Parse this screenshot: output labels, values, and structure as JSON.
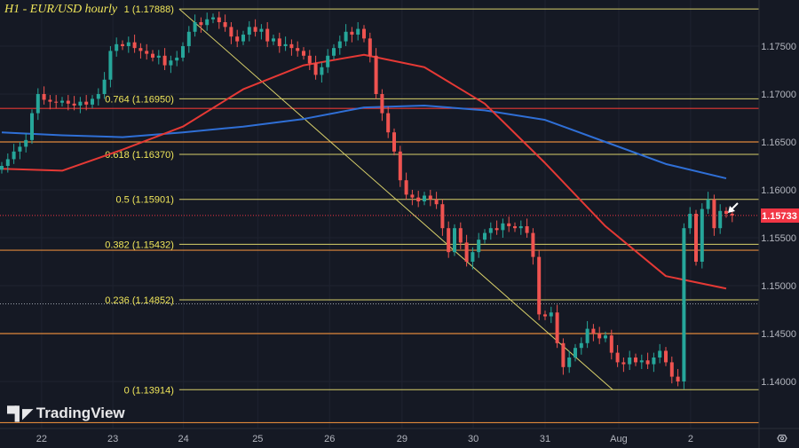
{
  "header": {
    "title": "H1 - EUR/USD hourly"
  },
  "branding": {
    "logo_text": "TradingView"
  },
  "colors": {
    "background": "#151924",
    "up": "#26a69a",
    "down": "#ef5350",
    "fib": "#d8d06a",
    "ma_fast": "#e53935",
    "ma_slow": "#2f6fd6",
    "level": "#e0893a",
    "price_badge": "#f23645"
  },
  "chart_data": {
    "type": "candlestick",
    "title": "H1 - EUR/USD hourly",
    "ylim": [
      1.135,
      1.181
    ],
    "grid": true,
    "y_ticks": [
      "1.17500",
      "1.17000",
      "1.16500",
      "1.16000",
      "1.15500",
      "1.15000",
      "1.14500",
      "1.14000"
    ],
    "y_tick_values": [
      1.175,
      1.17,
      1.165,
      1.16,
      1.155,
      1.15,
      1.145,
      1.14
    ],
    "x_ticks": [
      {
        "label": "22",
        "index": 6.6
      },
      {
        "label": "23",
        "index": 18.4
      },
      {
        "label": "24",
        "index": 30.1
      },
      {
        "label": "25",
        "index": 42.4
      },
      {
        "label": "26",
        "index": 54.3
      },
      {
        "label": "29",
        "index": 66.3
      },
      {
        "label": "30",
        "index": 78.1
      },
      {
        "label": "31",
        "index": 90.0
      },
      {
        "label": "Aug",
        "index": 102.2
      },
      {
        "label": "2",
        "index": 114.1
      }
    ],
    "candle_interval": "2h",
    "closes": [
      1.1625,
      1.1632,
      1.164,
      1.1645,
      1.1652,
      1.168,
      1.17,
      1.1694,
      1.1692,
      1.1691,
      1.1693,
      1.169,
      1.1688,
      1.1692,
      1.1689,
      1.1695,
      1.17,
      1.1715,
      1.1745,
      1.1752,
      1.175,
      1.1754,
      1.1748,
      1.1745,
      1.1742,
      1.1738,
      1.174,
      1.173,
      1.1735,
      1.1738,
      1.175,
      1.1765,
      1.1775,
      1.1772,
      1.1778,
      1.178,
      1.1775,
      1.177,
      1.176,
      1.1755,
      1.1762,
      1.177,
      1.1765,
      1.1768,
      1.1755,
      1.1758,
      1.175,
      1.1752,
      1.1748,
      1.1745,
      1.174,
      1.1732,
      1.172,
      1.1728,
      1.174,
      1.1748,
      1.1755,
      1.1765,
      1.1762,
      1.1768,
      1.1758,
      1.174,
      1.17,
      1.168,
      1.166,
      1.164,
      1.161,
      1.1595,
      1.1592,
      1.1588,
      1.1594,
      1.159,
      1.1585,
      1.156,
      1.1535,
      1.156,
      1.1545,
      1.1525,
      1.1535,
      1.1548,
      1.1555,
      1.156,
      1.1558,
      1.1565,
      1.1562,
      1.156,
      1.1562,
      1.1555,
      1.153,
      1.147,
      1.1468,
      1.1472,
      1.144,
      1.1415,
      1.1425,
      1.1435,
      1.144,
      1.1455,
      1.145,
      1.1445,
      1.1448,
      1.143,
      1.142,
      1.1418,
      1.1425,
      1.142,
      1.1422,
      1.1418,
      1.1425,
      1.1432,
      1.142,
      1.1405,
      1.14,
      1.156,
      1.1575,
      1.1525,
      1.158,
      1.159,
      1.156,
      1.1578,
      1.1575,
      1.15733
    ],
    "moving_averages": {
      "sample_every": 10,
      "red": [
        1.1622,
        1.162,
        1.1642,
        1.1666,
        1.1705,
        1.173,
        1.1741,
        1.1728,
        1.169,
        1.1628,
        1.1562,
        1.151,
        1.1497
      ],
      "blue": [
        1.166,
        1.1657,
        1.1655,
        1.166,
        1.1666,
        1.1674,
        1.1686,
        1.1688,
        1.1683,
        1.1673,
        1.165,
        1.1627,
        1.1612
      ]
    },
    "fibonacci": {
      "levels": [
        {
          "label": "1 (1.17888)",
          "price": 1.17888
        },
        {
          "label": "0.764 (1.16950)",
          "price": 1.1695
        },
        {
          "label": "0.618 (1.16370)",
          "price": 1.1637
        },
        {
          "label": "0.5 (1.15901)",
          "price": 1.15901
        },
        {
          "label": "0.382 (1.15432)",
          "price": 1.15432
        },
        {
          "label": "0.236 (1.14852)",
          "price": 1.14852
        },
        {
          "label": "0 (1.13914)",
          "price": 1.13914
        }
      ],
      "start_index": 29.4,
      "trend_end_index": 101.2
    },
    "horizontal_levels": [
      {
        "price": 1.165,
        "color": "#e0893a"
      },
      {
        "price": 1.1537,
        "color": "#e0893a"
      },
      {
        "price": 1.145,
        "color": "#e0893a"
      },
      {
        "price": 1.1357,
        "color": "#e0893a"
      },
      {
        "price": 1.1685,
        "color": "#e53935"
      }
    ],
    "dotted_levels": [
      {
        "price": 1.1481,
        "color": "#9aa0aa"
      }
    ],
    "last_price": {
      "label": "1.15733",
      "price": 1.15733
    }
  }
}
